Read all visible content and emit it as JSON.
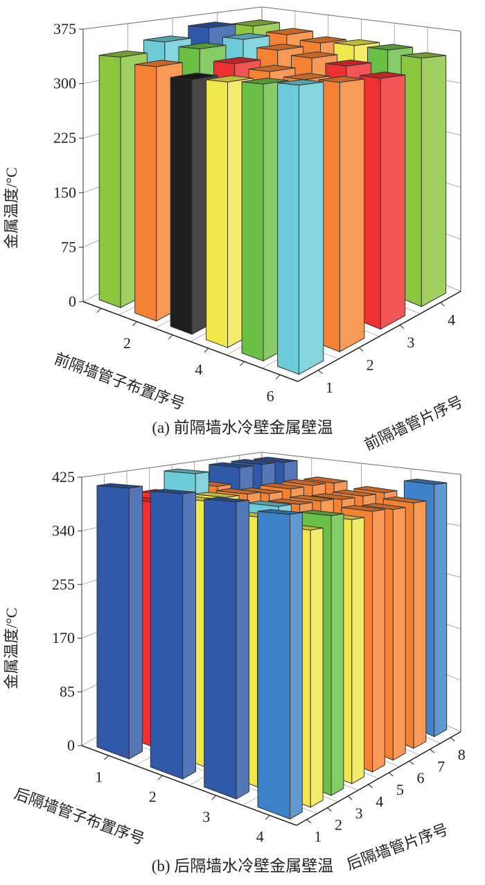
{
  "chart_data": [
    {
      "type": "bar3d",
      "caption": "(a) 前隔墙水冷壁金属壁温",
      "zlabel": "金属温度/°C",
      "xlabel": "前隔墙管子布置序号",
      "ylabel": "前隔墙管片序号",
      "zlim": [
        0,
        375
      ],
      "zticks": [
        "0",
        "75",
        "150",
        "225",
        "300",
        "375"
      ],
      "x_categories": [
        1,
        2,
        3,
        4,
        5,
        6
      ],
      "x_tick_labels": [
        "",
        "2",
        "",
        "4",
        "",
        "6"
      ],
      "y_categories": [
        1,
        2,
        3,
        4
      ],
      "y_tick_labels": [
        "1",
        "2",
        "3",
        "4"
      ],
      "grid": true,
      "values": [
        [
          338,
          330,
          318,
          320,
          322,
          325
        ],
        [
          350,
          345,
          330,
          325,
          320,
          322
        ],
        [
          362,
          350,
          340,
          335,
          330,
          320
        ],
        [
          355,
          348,
          342,
          345,
          345,
          340
        ]
      ],
      "colors": [
        [
          "#8cc63f",
          "#f58232",
          "#1e1e1e",
          "#f0e84a",
          "#6abf45",
          "#6ccbd6"
        ],
        [
          "#6ccbd6",
          "#6abf45",
          "#ee3030",
          "#f58232",
          "#f58232",
          "#f58232"
        ],
        [
          "#2e59a8",
          "#6ccbd6",
          "#f58232",
          "#f58232",
          "#ee3030",
          "#ee3030"
        ],
        [
          "#8cc63f",
          "#f58232",
          "#f58232",
          "#f0e84a",
          "#6abf45",
          "#8cc63f"
        ]
      ]
    },
    {
      "type": "bar3d",
      "caption": "(b) 后隔墙水冷壁金属壁温",
      "zlabel": "金属温度/°C",
      "xlabel": "后隔墙管子布置序号",
      "ylabel": "后隔墙管片序号",
      "zlim": [
        0,
        425
      ],
      "zticks": [
        "0",
        "85",
        "170",
        "255",
        "340",
        "425"
      ],
      "x_categories": [
        1,
        2,
        3,
        4
      ],
      "x_tick_labels": [
        "1",
        "2",
        "3",
        "4"
      ],
      "y_categories": [
        1,
        2,
        3,
        4,
        5,
        6,
        7,
        8
      ],
      "y_tick_labels": [
        "1",
        "2",
        "3",
        "4",
        "5",
        "6",
        "7",
        "8"
      ],
      "grid": true,
      "values": [
        [
          412,
          410,
          405,
          395
        ],
        [
          385,
          395,
          380,
          370
        ],
        [
          390,
          395,
          390,
          385
        ],
        [
          420,
          395,
          388,
          375
        ],
        [
          392,
          390,
          388,
          382
        ],
        [
          420,
          392,
          385,
          380
        ],
        [
          420,
          392,
          385,
          385
        ],
        [
          418,
          390,
          385,
          410
        ]
      ],
      "colors": [
        [
          "#2e59a8",
          "#2e59a8",
          "#2e59a8",
          "#3c82c8"
        ],
        [
          "#ee3030",
          "#f0e84a",
          "#f0e84a",
          "#f0e84a"
        ],
        [
          "#ee3030",
          "#f0e84a",
          "#6ccbd6",
          "#6abf45"
        ],
        [
          "#6ccbd6",
          "#f58232",
          "#f58232",
          "#f0e84a"
        ],
        [
          "#f58232",
          "#f58232",
          "#f58232",
          "#f58232"
        ],
        [
          "#2e59a8",
          "#f58232",
          "#f58232",
          "#f58232"
        ],
        [
          "#2e59a8",
          "#f58232",
          "#f58232",
          "#f58232"
        ],
        [
          "#2e59a8",
          "#f58232",
          "#f58232",
          "#3c82c8"
        ]
      ]
    }
  ]
}
